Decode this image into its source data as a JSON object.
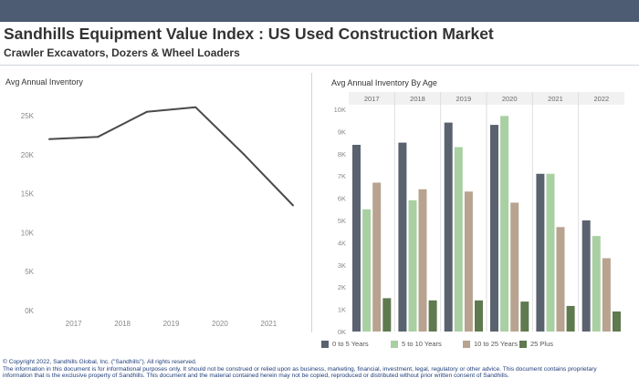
{
  "header": {
    "title": "Sandhills Equipment Value Index : US Used Construction Market",
    "subtitle": "Crawler Excavators, Dozers &  Wheel Loaders",
    "bar_color": "#4d5c72"
  },
  "chart_data": [
    {
      "type": "line",
      "title": "Avg Annual Inventory",
      "x": [
        2016.5,
        2017.5,
        2018.5,
        2019.5,
        2020.5,
        2021.5
      ],
      "xticks": [
        "2017",
        "2018",
        "2019",
        "2020",
        "2021"
      ],
      "yticks": [
        "0K",
        "5K",
        "10K",
        "15K",
        "20K",
        "25K"
      ],
      "values": [
        22000,
        22300,
        25500,
        26100,
        20000,
        13500
      ],
      "xlim": [
        2016.5,
        2021.5
      ],
      "ylim": [
        0,
        27000
      ],
      "color": "#4a4a4a",
      "grid": false
    },
    {
      "type": "bar",
      "title": "Avg Annual Inventory By Age",
      "categories": [
        "2017",
        "2018",
        "2019",
        "2020",
        "2021",
        "2022"
      ],
      "yticks": [
        "0K",
        "1K",
        "2K",
        "3K",
        "4K",
        "5K",
        "6K",
        "7K",
        "8K",
        "9K",
        "10K"
      ],
      "ylim": [
        0,
        10000
      ],
      "series": [
        {
          "name": "0 to 5 Years",
          "color": "#5a6270",
          "values": [
            8400,
            8500,
            9400,
            9300,
            7100,
            5000
          ]
        },
        {
          "name": "5 to 10 Years",
          "color": "#a9d0a2",
          "values": [
            5500,
            5900,
            8300,
            9700,
            7100,
            4300
          ]
        },
        {
          "name": "10 to 25 Years",
          "color": "#b8a390",
          "values": [
            6700,
            6400,
            6300,
            5800,
            4700,
            3300
          ]
        },
        {
          "name": "25 Plus",
          "color": "#5f7a4f",
          "values": [
            1500,
            1400,
            1400,
            1350,
            1150,
            900
          ]
        }
      ],
      "legend": "bottom",
      "grid": false
    }
  ],
  "footer": {
    "line1": "© Copyright 2022, Sandhills Global, Inc. (\"Sandhills\"). All rights reserved.",
    "line2": "The information in this document is for informational purposes only.  It should not be construed or relied upon as business, marketing, financial, investment, legal, regulatory or other advice. This document contains proprietary",
    "line3": "information that is the exclusive property of Sandhills. This document and the material contained herein may not be copied, reproduced or distributed without prior written consent of Sandhills."
  }
}
